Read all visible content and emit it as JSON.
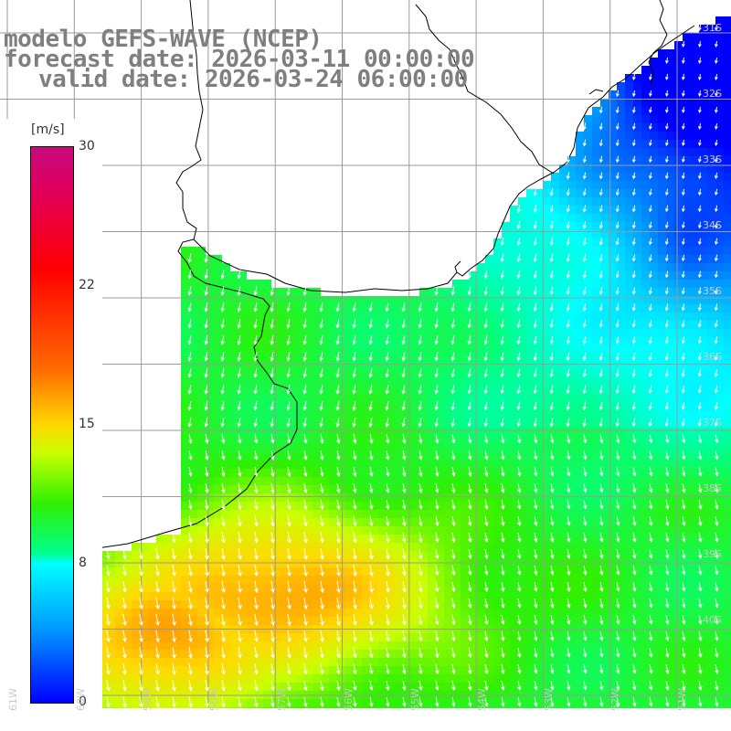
{
  "header": {
    "line1": "modelo GEFS-WAVE (NCEP)",
    "line2": "forecast date: 2026-03-11 00:00:00",
    "line3": "valid date: 2026-03-24 06:00:00"
  },
  "colorbar": {
    "unit": "[m/s]",
    "ticks": [
      "30",
      "22",
      "15",
      "8",
      "0"
    ],
    "colors": [
      "#0000ff",
      "#0096ff",
      "#00ffff",
      "#00ff8c",
      "#30f000",
      "#c9ff00",
      "#ffd800",
      "#ff6a00",
      "#ff0000",
      "#e0005a",
      "#c8097f"
    ]
  },
  "latitude_labels": [
    "31S",
    "32S",
    "33S",
    "34S",
    "35S",
    "36S",
    "37S",
    "38S",
    "39S",
    "40S"
  ],
  "longitude_labels": [
    "61W",
    "60W",
    "59W",
    "58W",
    "57W",
    "56W",
    "55W",
    "54W",
    "53W",
    "52W",
    "51W"
  ],
  "colors": {
    "land": "#ffffff",
    "coast": "#000000",
    "grid": "#9a9a9a",
    "header_text": "#7f7f7f",
    "arrow": "#ffffff"
  }
}
